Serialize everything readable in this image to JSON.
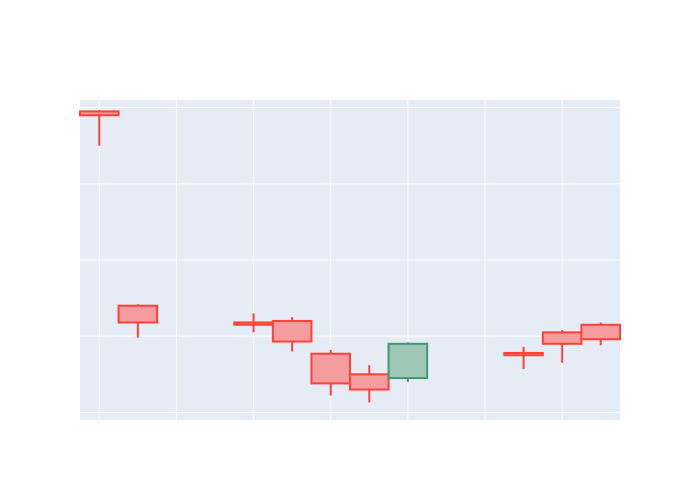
{
  "chart_data": {
    "type": "candlestick",
    "title": "",
    "xlabel": "",
    "ylabel": "",
    "x_ticks_shown": false,
    "y_ticks_shown": false,
    "grid": true,
    "legend": "none",
    "colors": {
      "plot_bg": "#e5ecf6",
      "grid": "#ffffff",
      "increasing_line": "#3d9970",
      "increasing_fill": "#9ec8b5",
      "decreasing_line": "#ff4136",
      "decreasing_fill": "#f59c9f"
    },
    "ylim": [
      -0.1,
      4.1
    ],
    "candles": [
      {
        "x": 0,
        "open": 3.95,
        "high": 3.97,
        "low": 3.5,
        "close": 3.9
      },
      {
        "x": 1,
        "open": 1.4,
        "high": 1.42,
        "low": 0.98,
        "close": 1.18
      },
      {
        "x": 4,
        "open": 1.18,
        "high": 1.3,
        "low": 1.05,
        "close": 1.15
      },
      {
        "x": 5,
        "open": 1.2,
        "high": 1.25,
        "low": 0.8,
        "close": 0.93
      },
      {
        "x": 6,
        "open": 0.77,
        "high": 0.82,
        "low": 0.22,
        "close": 0.38
      },
      {
        "x": 7,
        "open": 0.5,
        "high": 0.62,
        "low": 0.13,
        "close": 0.3
      },
      {
        "x": 8,
        "open": 0.45,
        "high": 0.92,
        "low": 0.4,
        "close": 0.9
      },
      {
        "x": 11,
        "open": 0.78,
        "high": 0.86,
        "low": 0.57,
        "close": 0.75
      },
      {
        "x": 12,
        "open": 1.05,
        "high": 1.08,
        "low": 0.65,
        "close": 0.9
      },
      {
        "x": 13,
        "open": 1.15,
        "high": 1.18,
        "low": 0.88,
        "close": 0.96
      }
    ],
    "x_domain": [
      -0.5,
      13.5
    ],
    "x_gridlines": [
      0,
      2,
      4,
      6,
      8,
      10,
      12
    ],
    "y_gridlines": [
      0,
      1,
      2,
      3,
      4
    ]
  }
}
